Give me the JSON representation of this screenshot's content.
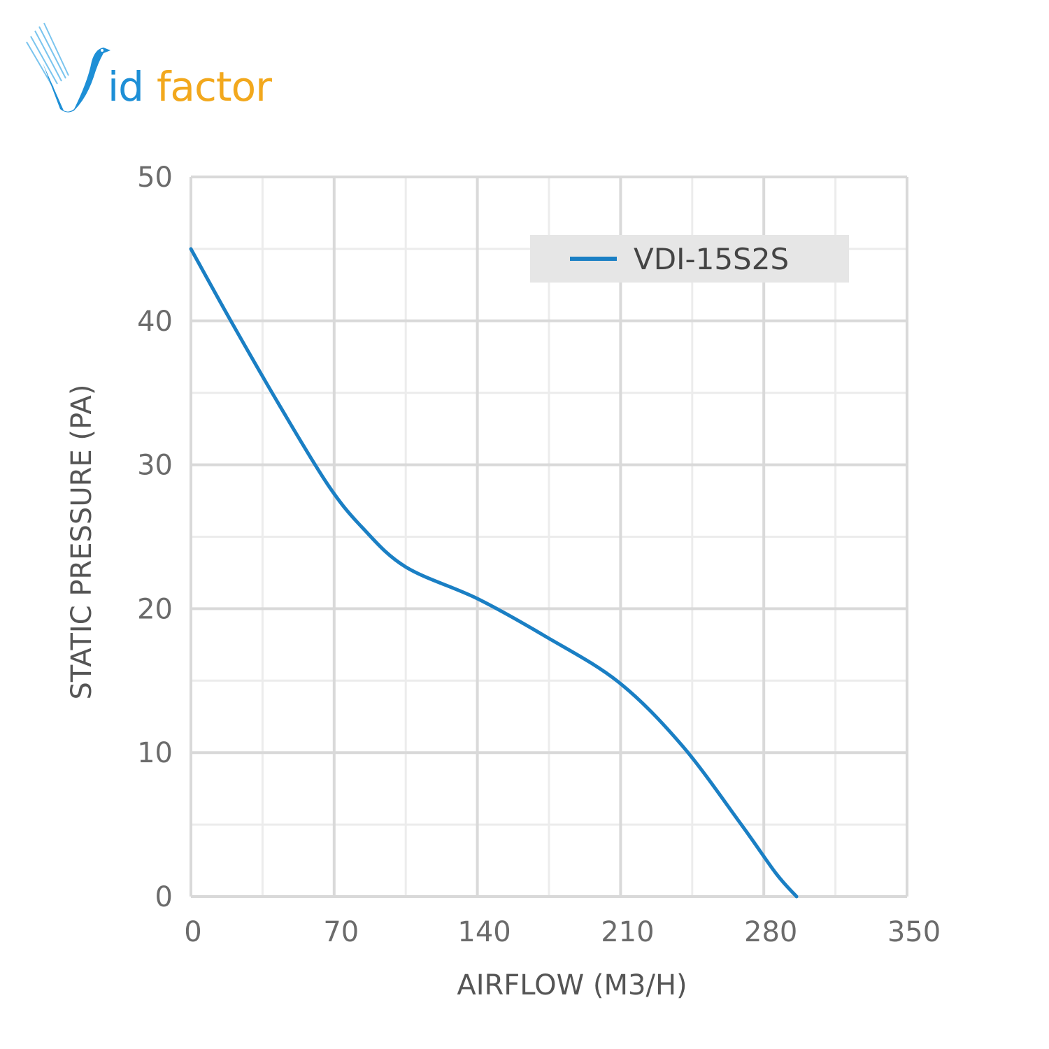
{
  "logo": {
    "full": "Vidfactor",
    "part_blue": "id",
    "part_orange": "factor",
    "blue": "#1e8fd6",
    "orange": "#f2a81d"
  },
  "chart_data": {
    "type": "line",
    "title": "",
    "xlabel": "AIRFLOW (M3/H)",
    "ylabel": "STATIC PRESSURE (PA)",
    "xlim": [
      0,
      350
    ],
    "ylim": [
      0,
      50
    ],
    "xticks": [
      0,
      70,
      140,
      210,
      280,
      350
    ],
    "yticks": [
      0,
      10,
      20,
      30,
      40,
      50
    ],
    "grid": true,
    "legend_position": "top-right",
    "series": [
      {
        "name": "VDI-15S2S",
        "color": "#1a7fc4",
        "x": [
          0,
          19.5,
          43,
          67,
          84,
          105,
          140,
          173,
          209,
          240,
          269,
          286,
          296
        ],
        "y": [
          45,
          40,
          34.2,
          28.6,
          25.6,
          22.9,
          20.7,
          18.1,
          14.9,
          10.5,
          5,
          1.6,
          0
        ]
      }
    ]
  }
}
